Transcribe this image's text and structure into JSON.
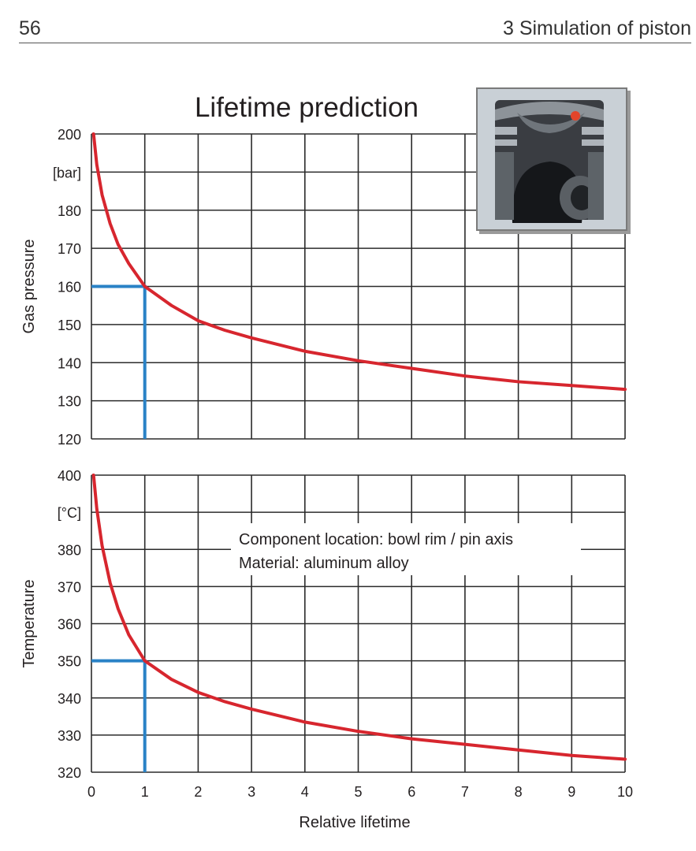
{
  "page": {
    "number": "56",
    "running_head": "3  Simulation of piston"
  },
  "colors": {
    "curve": "#d7262e",
    "marker": "#2a82c6",
    "grid": "#2b2b2b"
  },
  "chart_data": [
    {
      "type": "line",
      "title": "Lifetime prediction",
      "ylabel": "Gas pressure",
      "yunit": "[bar]",
      "xlabel": "",
      "xlim": [
        0,
        10
      ],
      "ylim": [
        120,
        200
      ],
      "yticks": [
        "120",
        "130",
        "140",
        "150",
        "160",
        "170",
        "180",
        "",
        "200"
      ],
      "series": [
        {
          "name": "",
          "x": [
            0.04,
            0.1,
            0.2,
            0.35,
            0.5,
            0.7,
            1,
            1.5,
            2,
            2.5,
            3,
            4,
            5,
            6,
            7,
            8,
            9,
            10
          ],
          "y": [
            200,
            192,
            184,
            176.5,
            171,
            166,
            160,
            155,
            151,
            148.5,
            146.5,
            143,
            140.5,
            138.5,
            136.5,
            135,
            134,
            133
          ]
        }
      ],
      "reference": {
        "x": 1,
        "y": 160
      }
    },
    {
      "type": "line",
      "title": "",
      "ylabel": "Temperature",
      "yunit": "[°C]",
      "xlabel": "Relative lifetime",
      "xlim": [
        0,
        10
      ],
      "ylim": [
        320,
        400
      ],
      "xticks": [
        "0",
        "1",
        "2",
        "3",
        "4",
        "5",
        "6",
        "7",
        "8",
        "9",
        "10"
      ],
      "yticks": [
        "320",
        "330",
        "340",
        "350",
        "360",
        "370",
        "380",
        "",
        "400"
      ],
      "annotation": [
        "Component location: bowl rim / pin axis",
        "Material: aluminum alloy"
      ],
      "series": [
        {
          "name": "",
          "x": [
            0.04,
            0.1,
            0.2,
            0.35,
            0.5,
            0.7,
            1,
            1.5,
            2,
            2.5,
            3,
            4,
            5,
            6,
            7,
            8,
            9,
            10
          ],
          "y": [
            400,
            391,
            381,
            371,
            364,
            357,
            350,
            345,
            341.5,
            339,
            337,
            333.5,
            331,
            329,
            327.5,
            326,
            324.5,
            323.5
          ]
        }
      ],
      "reference": {
        "x": 1,
        "y": 350
      }
    }
  ]
}
